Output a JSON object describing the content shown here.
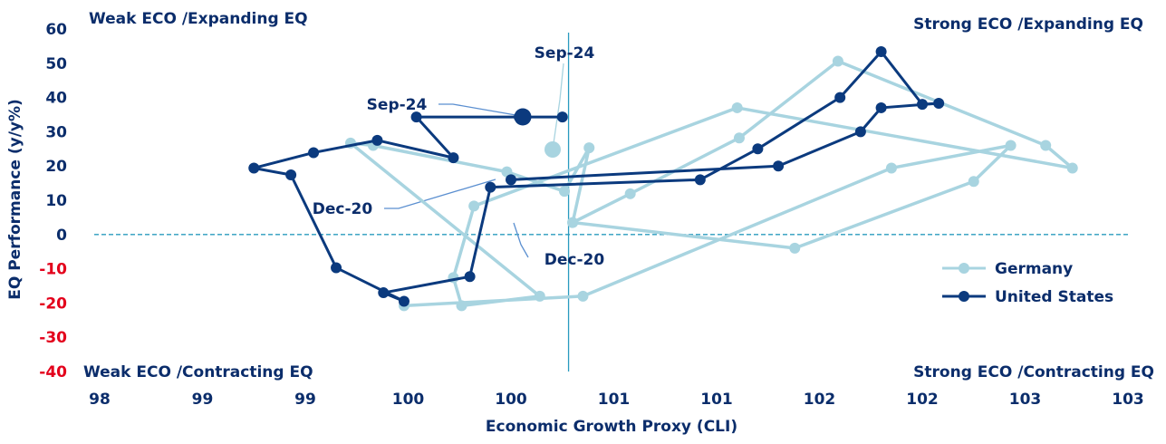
{
  "chart_data": {
    "type": "scatter",
    "xlabel": "Economic Growth Proxy (CLI)",
    "ylabel": "EQ Performance (y/y%)",
    "x_tick_labels": [
      "98",
      "99",
      "99",
      "100",
      "100",
      "101",
      "101",
      "102",
      "102",
      "103",
      "103"
    ],
    "x_ticks": [
      98,
      98.5,
      99,
      99.5,
      100,
      100.5,
      101,
      101.5,
      102,
      102.5,
      103
    ],
    "xlim": [
      98,
      103
    ],
    "ylim": [
      -40,
      60
    ],
    "y_ticks": [
      60,
      50,
      40,
      30,
      20,
      10,
      0,
      -10,
      -20,
      -30,
      -40
    ],
    "y_tick_labels": [
      "60",
      "50",
      "40",
      "30",
      "20",
      "10",
      "0",
      "-10",
      "-20",
      "-30",
      "-40"
    ],
    "vertical_reference_x": 100.28,
    "horizontal_reference_y": 0,
    "quadrant_labels": {
      "top_left": "Weak ECO /Expanding EQ",
      "top_right": "Strong ECO /Expanding EQ",
      "bottom_left": "Weak ECO /Contracting EQ",
      "bottom_right": "Strong ECO /Contracting EQ"
    },
    "legend_position": "right",
    "series": [
      {
        "name": "Germany",
        "color": "#a8d4e0",
        "x": [
          100.3,
          100.58,
          101.11,
          101.59,
          102.6,
          102.73,
          101.1,
          99.82,
          99.72,
          99.76,
          100.14,
          99.22,
          99.33,
          99.98,
          100.26,
          100.38,
          100.3,
          101.38,
          102.25,
          102.43,
          101.85,
          100.35,
          99.48
        ],
        "y": [
          3.5,
          11.9,
          28.2,
          50.6,
          26.0,
          19.4,
          37.0,
          8.3,
          -12.6,
          -20.8,
          -18.0,
          26.7,
          26.0,
          18.3,
          12.6,
          25.3,
          3.5,
          -4.0,
          15.5,
          26.0,
          19.4,
          -18.0,
          -20.8
        ]
      },
      {
        "name": "United States",
        "color": "#0b3a7e",
        "x": [
          100.0,
          101.3,
          101.7,
          101.8,
          102.08,
          102.0,
          101.8,
          101.6,
          101.2,
          100.92,
          99.9,
          99.8,
          99.38,
          99.48,
          99.15,
          98.93,
          98.75,
          99.04,
          99.35,
          99.72,
          99.54,
          100.04,
          100.25
        ],
        "y": [
          16.0,
          20.0,
          30.0,
          37.0,
          38.3,
          38.0,
          53.4,
          40.0,
          25.0,
          16.0,
          13.8,
          -12.3,
          -17.0,
          -19.5,
          -9.7,
          17.4,
          19.4,
          23.9,
          27.5,
          22.4,
          34.3,
          34.3,
          34.3
        ]
      }
    ],
    "annotations": [
      {
        "text": "Sep-24"
      },
      {
        "text": "Sep-24"
      },
      {
        "text": "Dec-20"
      },
      {
        "text": "Dec-20"
      }
    ]
  }
}
